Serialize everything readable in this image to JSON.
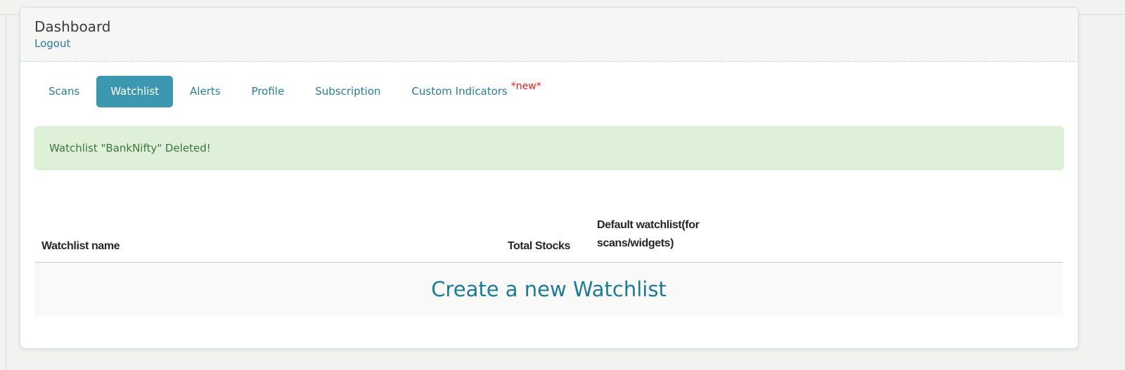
{
  "page": {
    "title": "Dashboard",
    "logout_label": "Logout"
  },
  "tabs": [
    {
      "label": "Scans",
      "active": false
    },
    {
      "label": "Watchlist",
      "active": true
    },
    {
      "label": "Alerts",
      "active": false
    },
    {
      "label": "Profile",
      "active": false
    },
    {
      "label": "Subscription",
      "active": false
    },
    {
      "label": "Custom Indicators",
      "active": false,
      "badge": "*new*"
    }
  ],
  "alert": {
    "type": "success",
    "message": "Watchlist \"BankNifty\" Deleted!"
  },
  "table": {
    "headers": [
      "Watchlist name",
      "Total Stocks",
      "Default watchlist(for scans/widgets)"
    ],
    "rows": [],
    "empty_action_label": "Create a new Watchlist"
  },
  "colors": {
    "active_tab_bg": "#3b98ae",
    "link_teal": "#2b7d94",
    "create_link_teal": "#1d7a99",
    "alert_bg": "#dff0d8",
    "alert_border": "#d6e9c6",
    "alert_text": "#3c763d",
    "badge_red": "#f21b18",
    "page_bg": "#f2f2f1",
    "card_header_bg": "#f6f6f5",
    "row_bg": "#f9f9f8"
  }
}
